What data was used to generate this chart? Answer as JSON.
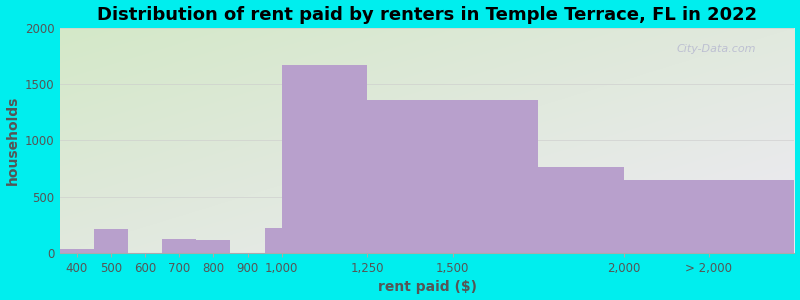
{
  "title": "Distribution of rent paid by renters in Temple Terrace, FL in 2022",
  "xlabel": "rent paid ($)",
  "ylabel": "households",
  "bar_values": [
    35,
    215,
    0,
    120,
    110,
    0,
    225,
    1670,
    1360,
    760,
    645
  ],
  "bar_color": "#b8a0cc",
  "background_color": "#00eeee",
  "plot_bg_top_left": "#d4e8c8",
  "plot_bg_bottom_right": "#eeeaf4",
  "ylim": [
    0,
    2000
  ],
  "yticks": [
    0,
    500,
    1000,
    1500,
    2000
  ],
  "title_fontsize": 13,
  "axis_label_fontsize": 10,
  "tick_fontsize": 8.5,
  "actual_widths": [
    100,
    100,
    100,
    100,
    100,
    100,
    250,
    250,
    500,
    500,
    500
  ],
  "actual_lefts": [
    350,
    450,
    550,
    650,
    750,
    850,
    950,
    1000,
    1250,
    1500,
    2000
  ],
  "xlim": [
    350,
    2500
  ],
  "xtick_positions": [
    400,
    500,
    600,
    700,
    800,
    900,
    1000,
    1250,
    1500,
    2000,
    2250
  ],
  "xtick_labels": [
    "400",
    "500",
    "600",
    "700",
    "800",
    "900",
    "1,000",
    "1,250",
    "1,500",
    "2,000",
    "> 2,000"
  ],
  "watermark_text": "City-Data.com"
}
